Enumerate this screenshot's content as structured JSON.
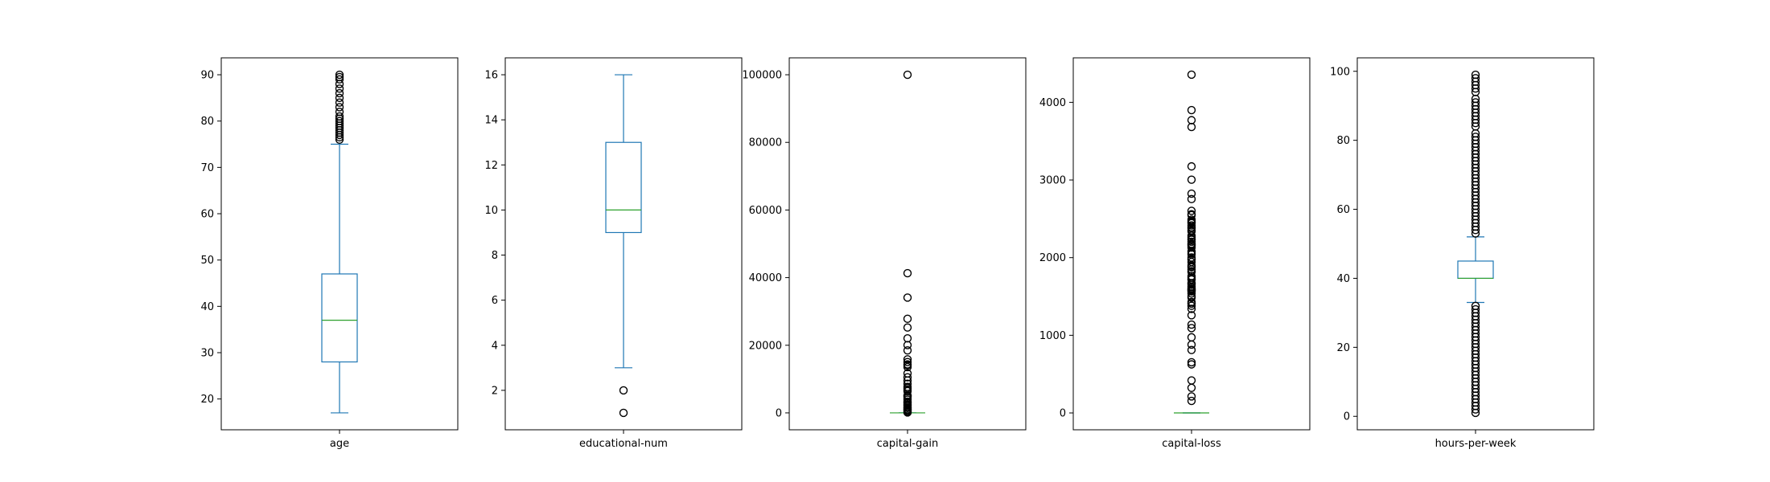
{
  "chart_data": [
    {
      "type": "box",
      "xlabel": "age",
      "yticks": [
        20,
        30,
        40,
        50,
        60,
        70,
        80,
        90
      ],
      "ylim": [
        13.35,
        93.65
      ],
      "whisker_low": 17,
      "q1": 28,
      "median": 37,
      "q3": 47,
      "whisker_high": 75,
      "outliers": [
        76,
        76.5,
        77,
        77.5,
        78,
        78.5,
        79,
        79.5,
        80,
        80.5,
        81,
        82,
        83,
        84,
        85,
        86,
        87,
        88,
        89,
        89.5,
        90
      ]
    },
    {
      "type": "box",
      "xlabel": "educational-num",
      "yticks": [
        2,
        4,
        6,
        8,
        10,
        12,
        14,
        16
      ],
      "ylim": [
        0.25,
        16.75
      ],
      "whisker_low": 3,
      "q1": 9,
      "median": 10,
      "q3": 13,
      "whisker_high": 16,
      "outliers": [
        1,
        2
      ]
    },
    {
      "type": "box",
      "xlabel": "capital-gain",
      "yticks": [
        0,
        20000,
        40000,
        60000,
        80000,
        100000
      ],
      "ylim": [
        -5000,
        105000
      ],
      "whisker_low": 0,
      "q1": 0,
      "median": 0,
      "q3": 0,
      "whisker_high": 0,
      "outliers": [
        99999,
        41310,
        34095,
        27828,
        25236,
        22040,
        20051,
        18481,
        15831,
        15024,
        14344,
        14084,
        13550,
        11678,
        10520,
        9562,
        8614,
        7688,
        7298,
        6849,
        6418,
        5178,
        5013,
        4787,
        4386,
        3908,
        3325,
        3103,
        2829,
        2407,
        2174,
        1797,
        1471,
        1055,
        914,
        594,
        401,
        114
      ]
    },
    {
      "type": "box",
      "xlabel": "capital-loss",
      "yticks": [
        0,
        1000,
        2000,
        3000,
        4000
      ],
      "ylim": [
        -217,
        4573
      ],
      "whisker_low": 0,
      "q1": 0,
      "median": 0,
      "q3": 0,
      "whisker_high": 0,
      "outliers": [
        4356,
        3900,
        3770,
        3683,
        3175,
        3004,
        2824,
        2754,
        2603,
        2559,
        2547,
        2489,
        2472,
        2457,
        2444,
        2415,
        2392,
        2377,
        2352,
        2339,
        2282,
        2258,
        2238,
        2231,
        2205,
        2179,
        2174,
        2163,
        2149,
        2129,
        2080,
        2057,
        2042,
        2002,
        1980,
        1977,
        1944,
        1902,
        1887,
        1876,
        1848,
        1825,
        1816,
        1762,
        1741,
        1721,
        1719,
        1672,
        1668,
        1651,
        1628,
        1617,
        1602,
        1594,
        1590,
        1579,
        1573,
        1564,
        1539,
        1504,
        1485,
        1429,
        1411,
        1408,
        1380,
        1340,
        1258,
        1138,
        1092,
        974,
        880,
        810,
        653,
        625,
        419,
        323,
        213,
        155
      ]
    },
    {
      "type": "box",
      "xlabel": "hours-per-week",
      "yticks": [
        0,
        20,
        40,
        60,
        80,
        100
      ],
      "ylim": [
        -3.9,
        103.9
      ],
      "whisker_low": 33,
      "q1": 40,
      "median": 40,
      "q3": 45,
      "whisker_high": 52,
      "outliers": [
        1,
        2,
        3,
        4,
        5,
        6,
        7,
        8,
        9,
        10,
        11,
        12,
        13,
        14,
        15,
        16,
        17,
        18,
        19,
        20,
        21,
        22,
        23,
        24,
        25,
        26,
        27,
        28,
        29,
        30,
        31,
        32,
        53,
        54,
        55,
        56,
        57,
        58,
        59,
        60,
        61,
        62,
        63,
        64,
        65,
        66,
        67,
        68,
        69,
        70,
        71,
        72,
        73,
        74,
        75,
        76,
        77,
        78,
        79,
        80,
        81,
        82,
        84,
        85,
        86,
        87,
        88,
        89,
        90,
        91,
        92,
        94,
        95,
        96,
        97,
        98,
        99
      ]
    }
  ],
  "colors": {
    "box": "#1f77b4",
    "median": "#2ca02c",
    "outlier": "#000000",
    "axis": "#000000",
    "background": "#ffffff"
  }
}
